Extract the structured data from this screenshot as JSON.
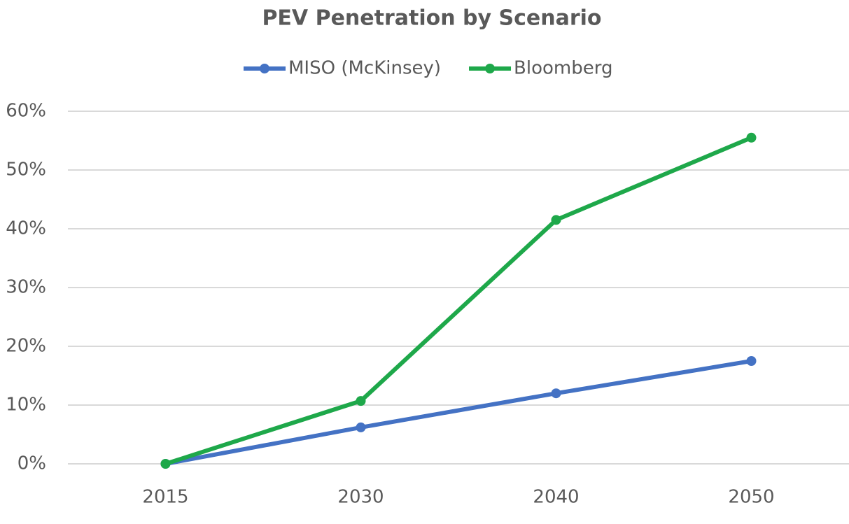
{
  "chart_data": {
    "type": "line",
    "title": "PEV Penetration by Scenario",
    "categories": [
      "2015",
      "2030",
      "2040",
      "2050"
    ],
    "series": [
      {
        "name": "MISO (McKinsey)",
        "color": "#4472c4",
        "values": [
          0,
          6.2,
          12,
          17.5
        ]
      },
      {
        "name": "Bloomberg",
        "color": "#1ea84a",
        "values": [
          0,
          10.7,
          41.5,
          55.5
        ]
      }
    ],
    "ylim": [
      0,
      60
    ],
    "yticks": [
      {
        "value": 0,
        "label": "0%"
      },
      {
        "value": 10,
        "label": "10%"
      },
      {
        "value": 20,
        "label": "20%"
      },
      {
        "value": 30,
        "label": "30%"
      },
      {
        "value": 40,
        "label": "40%"
      },
      {
        "value": 50,
        "label": "50%"
      },
      {
        "value": 60,
        "label": "60%"
      }
    ],
    "grid": true,
    "legend": "top"
  }
}
